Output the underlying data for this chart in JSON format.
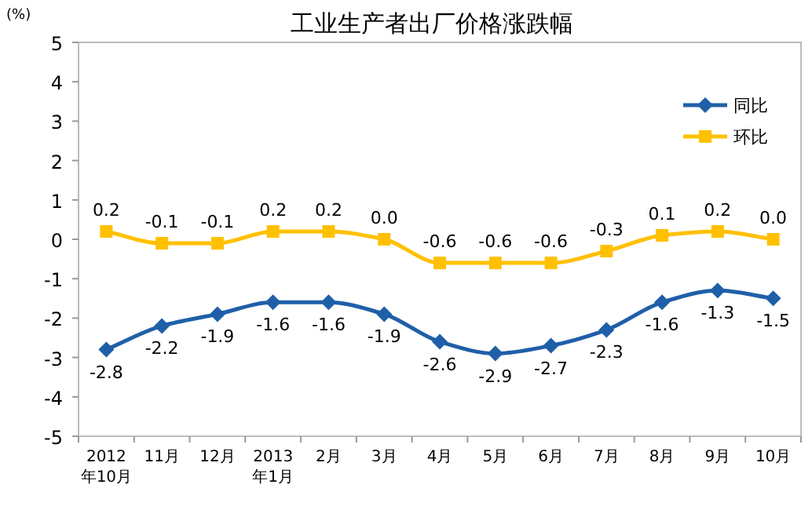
{
  "chart_data": {
    "type": "line",
    "title": "工业生产者出厂价格涨跌幅",
    "ylabel": "(%)",
    "categories": [
      "2012年10月",
      "11月",
      "12月",
      "2013年1月",
      "2月",
      "3月",
      "4月",
      "5月",
      "6月",
      "7月",
      "8月",
      "9月",
      "10月"
    ],
    "series": [
      {
        "name": "同比",
        "color": "#1f5fa8",
        "marker": "diamond",
        "values": [
          -2.8,
          -2.2,
          -1.9,
          -1.6,
          -1.6,
          -1.9,
          -2.6,
          -2.9,
          -2.7,
          -2.3,
          -1.6,
          -1.3,
          -1.5
        ],
        "value_labels": [
          "-2.8",
          "-2.2",
          "-1.9",
          "-1.6",
          "-1.6",
          "-1.9",
          "-2.6",
          "-2.9",
          "-2.7",
          "-2.3",
          "-1.6",
          "-1.3",
          "-1.5"
        ]
      },
      {
        "name": "环比",
        "color": "#ffc000",
        "marker": "square",
        "values": [
          0.2,
          -0.1,
          -0.1,
          0.2,
          0.2,
          0.0,
          -0.6,
          -0.6,
          -0.6,
          -0.3,
          0.1,
          0.2,
          0.0
        ],
        "value_labels": [
          "0.2",
          "-0.1",
          "-0.1",
          "0.2",
          "0.2",
          "0.0",
          "-0.6",
          "-0.6",
          "-0.6",
          "-0.3",
          "0.1",
          "0.2",
          "0.0"
        ]
      }
    ],
    "ylim": [
      -5,
      5
    ],
    "yticks": [
      -5,
      -4,
      -3,
      -2,
      -1,
      0,
      1,
      2,
      3,
      4,
      5
    ],
    "grid": false,
    "legend": "top right"
  }
}
